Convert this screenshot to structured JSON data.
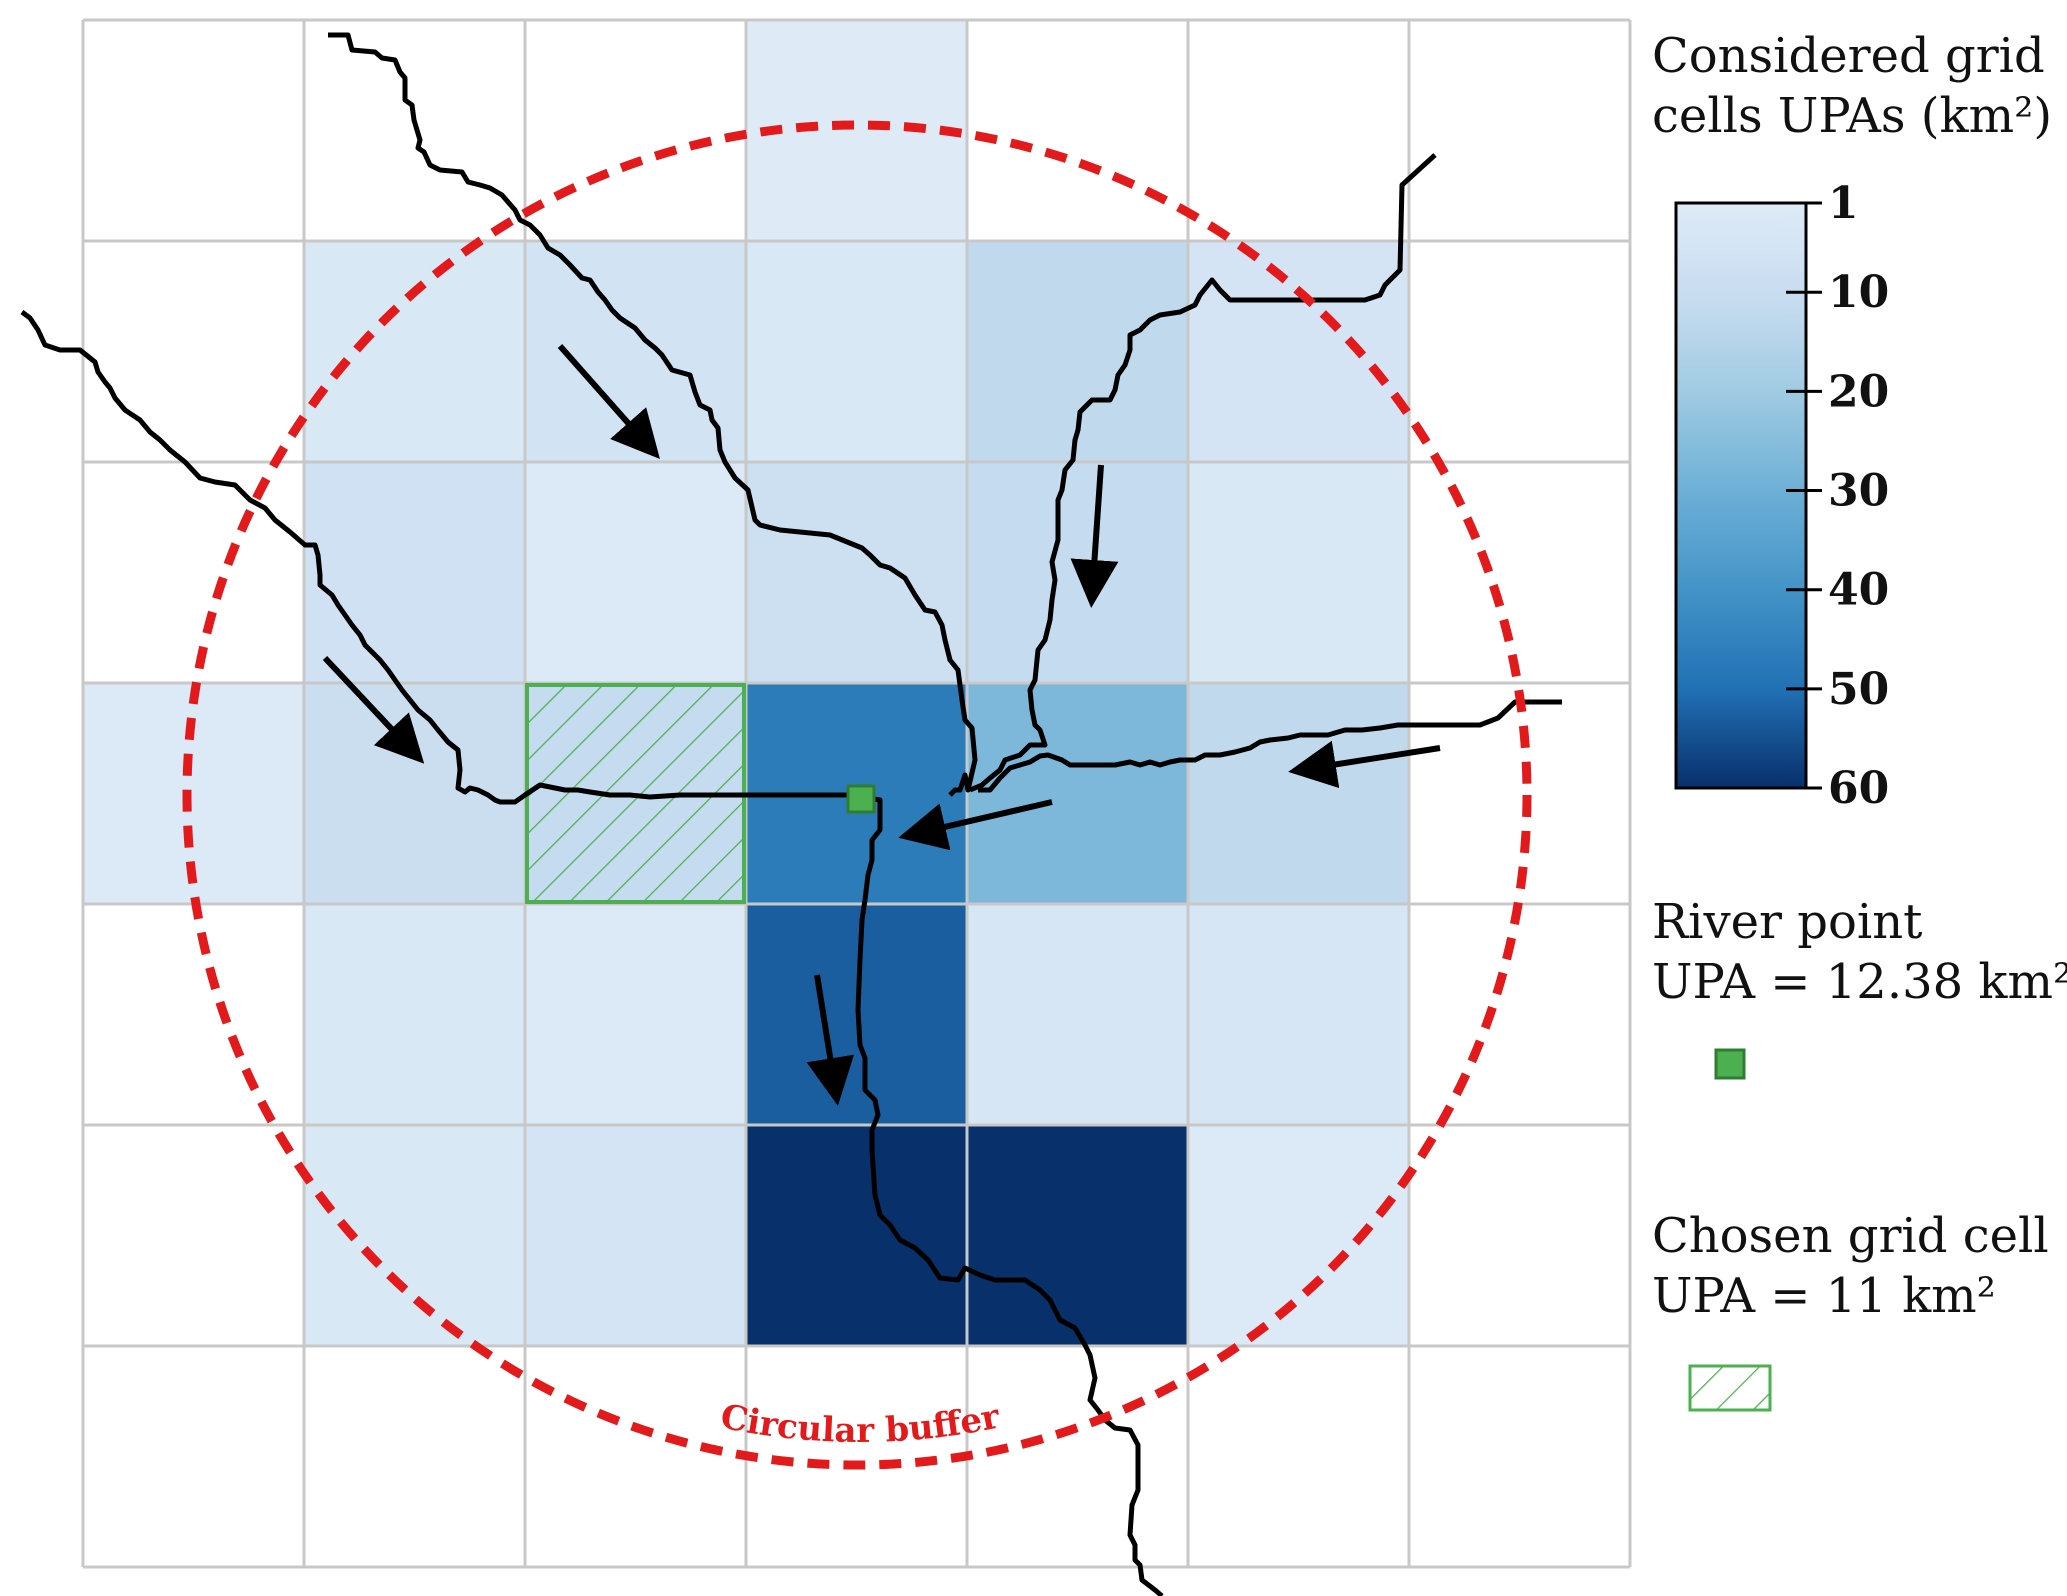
{
  "colors": {
    "grid_line": "#c8c8c8",
    "river": "#000000",
    "buffer": "#e31a1c",
    "river_point": "#4caf50",
    "chosen_cell": "#4caf50",
    "colormap": [
      "#deebf7",
      "#c6dbef",
      "#9ecae1",
      "#6baed6",
      "#4292c6",
      "#2171b5",
      "#08306b"
    ]
  },
  "grid": {
    "rows": 7,
    "cols": 7,
    "cell_upa_km2": [
      [
        null,
        null,
        null,
        1,
        null,
        null,
        null
      ],
      [
        null,
        3,
        6,
        3,
        12,
        5,
        null
      ],
      [
        null,
        7,
        2,
        8,
        11,
        3,
        null
      ],
      [
        2,
        9,
        11,
        47,
        27,
        12,
        null
      ],
      [
        null,
        3,
        2,
        53,
        4,
        4,
        null
      ],
      [
        null,
        3,
        5,
        60,
        60,
        2,
        null
      ],
      [
        null,
        null,
        null,
        null,
        null,
        null,
        null
      ]
    ],
    "chosen_cell": {
      "row": 3,
      "col": 2
    }
  },
  "buffer": {
    "label": "Circular buffer"
  },
  "legend": {
    "colorbar_title_line1": "Considered grid",
    "colorbar_title_line2": "cells UPAs (km²)",
    "colorbar_ticks": [
      {
        "value": 1,
        "label": "1"
      },
      {
        "value": 10,
        "label": "10"
      },
      {
        "value": 20,
        "label": "20"
      },
      {
        "value": 30,
        "label": "30"
      },
      {
        "value": 40,
        "label": "40"
      },
      {
        "value": 50,
        "label": "50"
      },
      {
        "value": 60,
        "label": "60"
      }
    ],
    "colorbar_range": [
      1,
      60
    ],
    "river_point_line1": "River point",
    "river_point_line2": "UPA = 12.38 km²",
    "chosen_cell_line1": "Chosen grid cell",
    "chosen_cell_line2": "UPA = 11 km²"
  }
}
